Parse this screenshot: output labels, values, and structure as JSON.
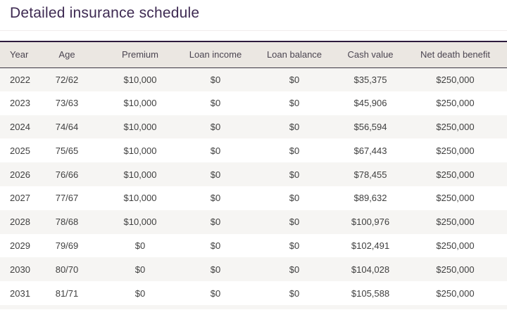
{
  "page": {
    "title": "Detailed insurance schedule"
  },
  "colors": {
    "brand_purple": "#3e2a52",
    "table_top_border_purple": "#2d1b3e",
    "header_background_beige": "#ebe7e2",
    "header_text": "#4b4551",
    "row_alternate_gray": "#f6f5f3",
    "body_text": "#3f3f3f"
  },
  "table": {
    "columns": [
      {
        "id": "year",
        "label": "Year"
      },
      {
        "id": "age",
        "label": "Age"
      },
      {
        "id": "premium",
        "label": "Premium"
      },
      {
        "id": "loan-income",
        "label": "Loan income"
      },
      {
        "id": "loan-balance",
        "label": "Loan balance"
      },
      {
        "id": "cash-value",
        "label": "Cash value"
      },
      {
        "id": "net-death-benefit",
        "label": "Net death benefit"
      }
    ],
    "rows": [
      [
        "2022",
        "72/62",
        "$10,000",
        "$0",
        "$0",
        "$35,375",
        "$250,000"
      ],
      [
        "2023",
        "73/63",
        "$10,000",
        "$0",
        "$0",
        "$45,906",
        "$250,000"
      ],
      [
        "2024",
        "74/64",
        "$10,000",
        "$0",
        "$0",
        "$56,594",
        "$250,000"
      ],
      [
        "2025",
        "75/65",
        "$10,000",
        "$0",
        "$0",
        "$67,443",
        "$250,000"
      ],
      [
        "2026",
        "76/66",
        "$10,000",
        "$0",
        "$0",
        "$78,455",
        "$250,000"
      ],
      [
        "2027",
        "77/67",
        "$10,000",
        "$0",
        "$0",
        "$89,632",
        "$250,000"
      ],
      [
        "2028",
        "78/68",
        "$10,000",
        "$0",
        "$0",
        "$100,976",
        "$250,000"
      ],
      [
        "2029",
        "79/69",
        "$0",
        "$0",
        "$0",
        "$102,491",
        "$250,000"
      ],
      [
        "2030",
        "80/70",
        "$0",
        "$0",
        "$0",
        "$104,028",
        "$250,000"
      ],
      [
        "2031",
        "81/71",
        "$0",
        "$0",
        "$0",
        "$105,588",
        "$250,000"
      ]
    ]
  }
}
